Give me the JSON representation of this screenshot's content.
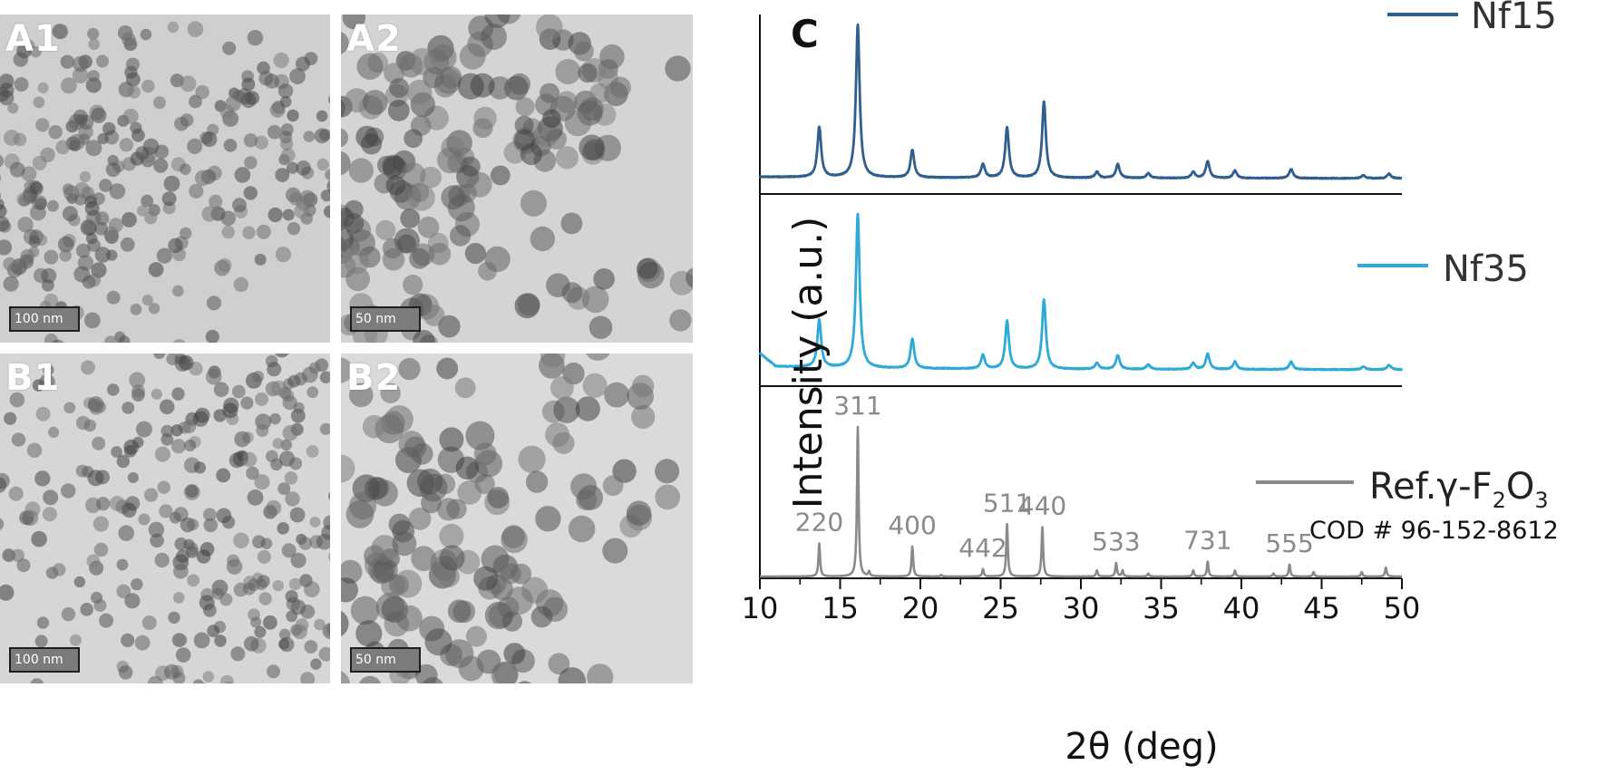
{
  "tem_panels": [
    {
      "label": "A1",
      "scale": "100 nm"
    },
    {
      "label": "A2",
      "scale": "50 nm"
    },
    {
      "label": "B1",
      "scale": "100 nm"
    },
    {
      "label": "B2",
      "scale": "50 nm"
    }
  ],
  "chart_data": {
    "panel_label": "C",
    "type": "line",
    "xlabel": "2θ (deg)",
    "ylabel": "Intensity (a.u.)",
    "xlim": [
      10,
      50
    ],
    "xticks": [
      10,
      15,
      20,
      25,
      30,
      35,
      40,
      45,
      50
    ],
    "xtick_labels": [
      "10",
      "15",
      "20",
      "25",
      "30",
      "35",
      "40",
      "45",
      "50"
    ],
    "grid": false,
    "legend_placement": "top-right of each subpanel",
    "series": [
      {
        "name": "Nf15",
        "color": "#2f5f8f",
        "peaks": [
          {
            "x": 13.7,
            "h": 0.33
          },
          {
            "x": 16.1,
            "h": 1.0
          },
          {
            "x": 19.5,
            "h": 0.18
          },
          {
            "x": 23.9,
            "h": 0.09
          },
          {
            "x": 25.4,
            "h": 0.33
          },
          {
            "x": 27.7,
            "h": 0.5
          },
          {
            "x": 31.0,
            "h": 0.04
          },
          {
            "x": 32.3,
            "h": 0.09
          },
          {
            "x": 34.2,
            "h": 0.03
          },
          {
            "x": 37.0,
            "h": 0.04
          },
          {
            "x": 37.9,
            "h": 0.11
          },
          {
            "x": 39.6,
            "h": 0.05
          },
          {
            "x": 43.1,
            "h": 0.06
          },
          {
            "x": 47.6,
            "h": 0.02
          },
          {
            "x": 49.2,
            "h": 0.03
          }
        ]
      },
      {
        "name": "Nf35",
        "color": "#2eaad8",
        "peaks": [
          {
            "x": 13.7,
            "h": 0.31
          },
          {
            "x": 16.1,
            "h": 1.0
          },
          {
            "x": 19.5,
            "h": 0.19
          },
          {
            "x": 23.9,
            "h": 0.09
          },
          {
            "x": 25.4,
            "h": 0.31
          },
          {
            "x": 27.7,
            "h": 0.45
          },
          {
            "x": 31.0,
            "h": 0.04
          },
          {
            "x": 32.3,
            "h": 0.09
          },
          {
            "x": 34.2,
            "h": 0.03
          },
          {
            "x": 37.0,
            "h": 0.04
          },
          {
            "x": 37.9,
            "h": 0.1
          },
          {
            "x": 39.6,
            "h": 0.05
          },
          {
            "x": 43.1,
            "h": 0.05
          },
          {
            "x": 47.6,
            "h": 0.02
          },
          {
            "x": 49.2,
            "h": 0.03
          }
        ]
      },
      {
        "name": "Ref.γ-F₂O₃",
        "name_main": "Ref.γ-F",
        "name_sub1": "2",
        "name_mid": "O",
        "name_sub2": "3",
        "source": "COD # 96-152-8612",
        "color": "#8a8a8a",
        "peaks": [
          {
            "x": 13.7,
            "h": 0.22
          },
          {
            "x": 16.1,
            "h": 1.0
          },
          {
            "x": 16.8,
            "h": 0.03
          },
          {
            "x": 19.5,
            "h": 0.2
          },
          {
            "x": 21.3,
            "h": 0.01
          },
          {
            "x": 23.9,
            "h": 0.05
          },
          {
            "x": 25.4,
            "h": 0.35
          },
          {
            "x": 27.6,
            "h": 0.33
          },
          {
            "x": 31.0,
            "h": 0.04
          },
          {
            "x": 32.2,
            "h": 0.09
          },
          {
            "x": 32.6,
            "h": 0.04
          },
          {
            "x": 34.2,
            "h": 0.02
          },
          {
            "x": 37.0,
            "h": 0.04
          },
          {
            "x": 37.9,
            "h": 0.1
          },
          {
            "x": 39.6,
            "h": 0.04
          },
          {
            "x": 42.0,
            "h": 0.02
          },
          {
            "x": 43.0,
            "h": 0.08
          },
          {
            "x": 44.5,
            "h": 0.03
          },
          {
            "x": 47.5,
            "h": 0.03
          },
          {
            "x": 49.0,
            "h": 0.06
          }
        ],
        "annotations": [
          {
            "text": "220",
            "x": 13.7
          },
          {
            "text": "311",
            "x": 16.1
          },
          {
            "text": "400",
            "x": 19.5
          },
          {
            "text": "442",
            "x": 23.9
          },
          {
            "text": "511",
            "x": 25.4
          },
          {
            "text": "440",
            "x": 27.6
          },
          {
            "text": "533",
            "x": 32.2
          },
          {
            "text": "731",
            "x": 37.9
          },
          {
            "text": "555",
            "x": 43.0
          }
        ]
      }
    ]
  }
}
